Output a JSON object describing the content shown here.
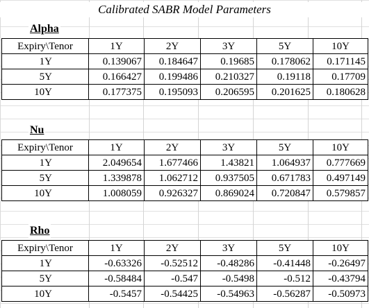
{
  "title": "Calibrated SABR Model Parameters",
  "row_header": "Expiry\\Tenor",
  "tenors": [
    "1Y",
    "2Y",
    "3Y",
    "5Y",
    "10Y"
  ],
  "blocks": [
    {
      "name": "Alpha",
      "rows": [
        {
          "expiry": "1Y",
          "values": [
            "0.139067",
            "0.184647",
            "0.19685",
            "0.178062",
            "0.171145"
          ]
        },
        {
          "expiry": "5Y",
          "values": [
            "0.166427",
            "0.199486",
            "0.210327",
            "0.19118",
            "0.17709"
          ]
        },
        {
          "expiry": "10Y",
          "values": [
            "0.177375",
            "0.195093",
            "0.206595",
            "0.201625",
            "0.180628"
          ]
        }
      ]
    },
    {
      "name": "Nu",
      "rows": [
        {
          "expiry": "1Y",
          "values": [
            "2.049654",
            "1.677466",
            "1.43821",
            "1.064937",
            "0.777669"
          ]
        },
        {
          "expiry": "5Y",
          "values": [
            "1.339878",
            "1.062712",
            "0.937505",
            "0.671783",
            "0.497149"
          ]
        },
        {
          "expiry": "10Y",
          "values": [
            "1.008059",
            "0.926327",
            "0.869024",
            "0.720847",
            "0.579857"
          ]
        }
      ]
    },
    {
      "name": "Rho",
      "rows": [
        {
          "expiry": "1Y",
          "values": [
            "-0.63326",
            "-0.52512",
            "-0.48286",
            "-0.41448",
            "-0.26497"
          ]
        },
        {
          "expiry": "5Y",
          "values": [
            "-0.58484",
            "-0.547",
            "-0.5498",
            "-0.512",
            "-0.43794"
          ]
        },
        {
          "expiry": "10Y",
          "values": [
            "-0.5457",
            "-0.54425",
            "-0.54963",
            "-0.56287",
            "-0.50973"
          ]
        }
      ]
    }
  ]
}
